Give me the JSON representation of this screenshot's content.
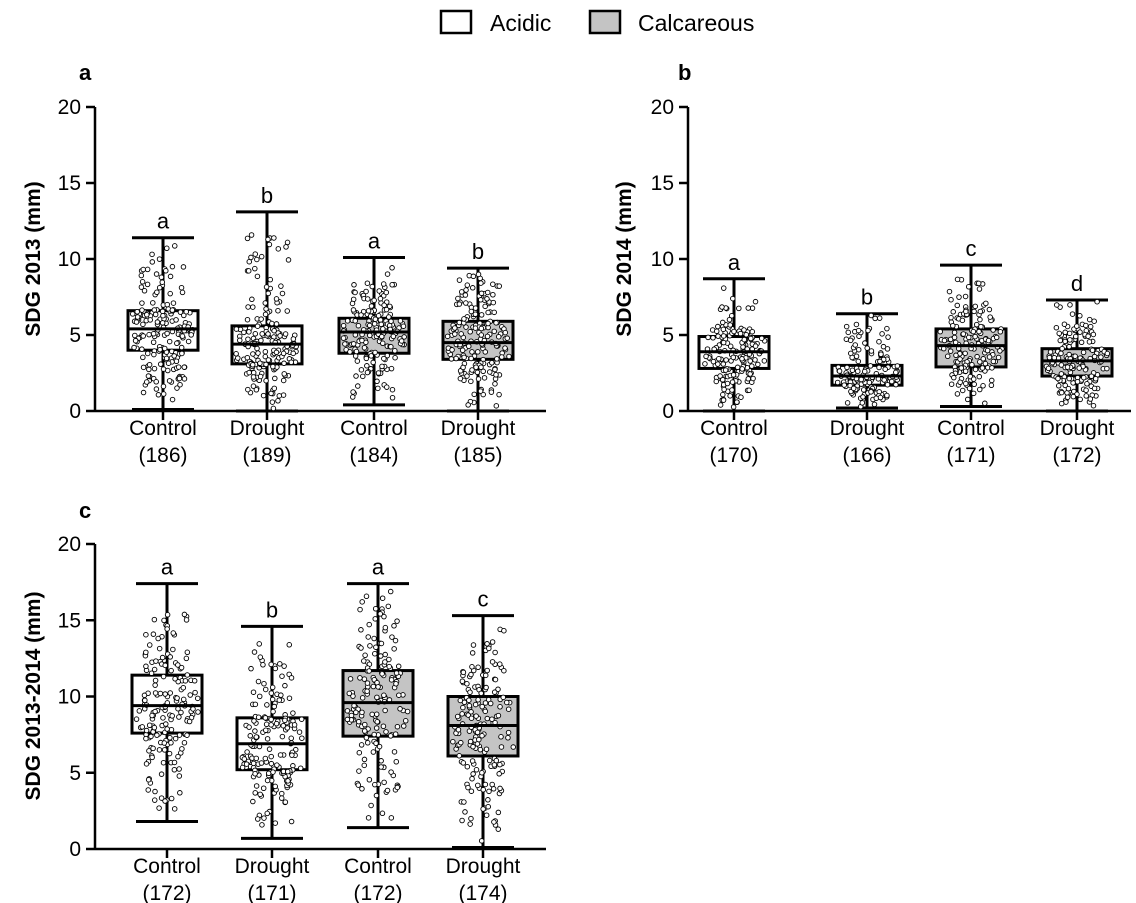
{
  "legend": [
    {
      "label": "Acidic",
      "fill": "#ffffff"
    },
    {
      "label": "Calcareous",
      "fill": "#c4c4c4"
    }
  ],
  "chart_data": [
    {
      "panel": "a",
      "type": "box",
      "ylabel": "SDG 2013 (mm)",
      "ylim": [
        0,
        20
      ],
      "yticks": [
        0,
        5,
        10,
        15,
        20
      ],
      "categories": [
        {
          "label": "Control",
          "n": "(186)",
          "group": "Acidic",
          "min": 0.1,
          "q1": 4.0,
          "median": 5.4,
          "q3": 6.6,
          "max": 11.4,
          "sig": "a"
        },
        {
          "label": "Drought",
          "n": "(189)",
          "group": "Acidic",
          "min": 0.0,
          "q1": 3.1,
          "median": 4.4,
          "q3": 5.6,
          "max": 13.1,
          "sig": "b"
        },
        {
          "label": "Control",
          "n": "(184)",
          "group": "Calcareous",
          "min": 0.4,
          "q1": 3.8,
          "median": 5.2,
          "q3": 6.1,
          "max": 10.1,
          "sig": "a"
        },
        {
          "label": "Drought",
          "n": "(185)",
          "group": "Calcareous",
          "min": 0.0,
          "q1": 3.4,
          "median": 4.5,
          "q3": 5.9,
          "max": 9.4,
          "sig": "b"
        }
      ]
    },
    {
      "panel": "b",
      "type": "box",
      "ylabel": "SDG 2014 (mm)",
      "ylim": [
        0,
        20
      ],
      "yticks": [
        0,
        5,
        10,
        15,
        20
      ],
      "categories": [
        {
          "label": "Control",
          "n": "(170)",
          "group": "Acidic",
          "min": 0.0,
          "q1": 2.8,
          "median": 3.9,
          "q3": 4.9,
          "max": 8.7,
          "sig": "a"
        },
        {
          "label": "Drought",
          "n": "(166)",
          "group": "Acidic",
          "min": 0.2,
          "q1": 1.7,
          "median": 2.3,
          "q3": 3.0,
          "max": 6.4,
          "sig": "b"
        },
        {
          "label": "Control",
          "n": "(171)",
          "group": "Calcareous",
          "min": 0.3,
          "q1": 2.9,
          "median": 4.3,
          "q3": 5.4,
          "max": 9.6,
          "sig": "c"
        },
        {
          "label": "Drought",
          "n": "(172)",
          "group": "Calcareous",
          "min": 0.0,
          "q1": 2.3,
          "median": 3.3,
          "q3": 4.1,
          "max": 7.3,
          "sig": "d"
        }
      ]
    },
    {
      "panel": "c",
      "type": "box",
      "ylabel": "SDG 2013-2014 (mm)",
      "ylim": [
        0,
        20
      ],
      "yticks": [
        0,
        5,
        10,
        15,
        20
      ],
      "categories": [
        {
          "label": "Control",
          "n": "(172)",
          "group": "Acidic",
          "min": 1.8,
          "q1": 7.6,
          "median": 9.4,
          "q3": 11.4,
          "max": 17.4,
          "sig": "a"
        },
        {
          "label": "Drought",
          "n": "(171)",
          "group": "Acidic",
          "min": 0.7,
          "q1": 5.2,
          "median": 6.9,
          "q3": 8.6,
          "max": 14.6,
          "sig": "b"
        },
        {
          "label": "Control",
          "n": "(172)",
          "group": "Calcareous",
          "min": 1.4,
          "q1": 7.4,
          "median": 9.6,
          "q3": 11.7,
          "max": 17.4,
          "sig": "a"
        },
        {
          "label": "Drought",
          "n": "(174)",
          "group": "Calcareous",
          "min": 0.1,
          "q1": 6.1,
          "median": 8.1,
          "q3": 10.0,
          "max": 15.3,
          "sig": "c"
        }
      ]
    }
  ]
}
